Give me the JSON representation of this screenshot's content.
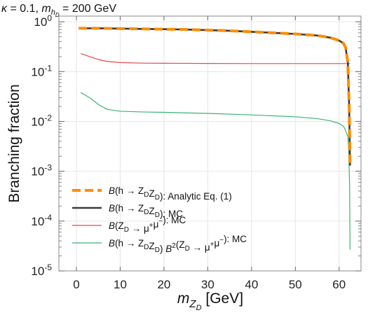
{
  "chart_data": {
    "type": "line",
    "title_parts": {
      "kappa_symbol": "κ",
      "kappa_value": " = 0.1, ",
      "mass_symbol": "m",
      "mass_sub": "h",
      "mass_subsub": "D",
      "mass_value": " = 200 GeV"
    },
    "xlabel_parts": {
      "symbol": "m",
      "sub": "Z",
      "subsub": "D",
      "unit": " [GeV]"
    },
    "ylabel": "Branching fraction",
    "xlim": [
      -4,
      65
    ],
    "ylim": [
      1e-05,
      1.3
    ],
    "yscale": "log",
    "x_ticks": [
      0,
      10,
      20,
      30,
      40,
      50,
      60
    ],
    "y_ticks": [
      {
        "value": 1e-05,
        "base": "10",
        "exp": "-5"
      },
      {
        "value": 0.0001,
        "base": "10",
        "exp": "-4"
      },
      {
        "value": 0.001,
        "base": "10",
        "exp": "-3"
      },
      {
        "value": 0.01,
        "base": "10",
        "exp": "-2"
      },
      {
        "value": 0.1,
        "base": "10",
        "exp": "-1"
      },
      {
        "value": 1,
        "base": "10",
        "exp": "0"
      }
    ],
    "grid": true,
    "legend_position": "bottom-left",
    "series": [
      {
        "key": "analytic",
        "color": "#ff8c00",
        "style": "dashed",
        "legend_parts": [
          "B",
          "(h → Z",
          "D",
          "Z",
          "D",
          "): Analytic Eq. (1)"
        ],
        "x": [
          0.5,
          5,
          10,
          15,
          20,
          25,
          30,
          35,
          40,
          45,
          50,
          55,
          58,
          60,
          61,
          61.5,
          62,
          62.3,
          62.5
        ],
        "y": [
          0.74,
          0.74,
          0.73,
          0.72,
          0.71,
          0.7,
          0.68,
          0.66,
          0.63,
          0.6,
          0.57,
          0.53,
          0.48,
          0.42,
          0.37,
          0.3,
          0.15,
          0.02,
          0.0013
        ]
      },
      {
        "key": "mc-h",
        "color": "#3a3a3a",
        "style": "solid",
        "legend_parts": [
          "B",
          "(h → Z",
          "D",
          "Z",
          "D",
          "): MC"
        ],
        "x": [
          1,
          5,
          10,
          15,
          20,
          25,
          30,
          35,
          40,
          45,
          50,
          55,
          58,
          60,
          61,
          61.5,
          62,
          62.3,
          62.5
        ],
        "y": [
          0.74,
          0.74,
          0.73,
          0.72,
          0.71,
          0.7,
          0.68,
          0.66,
          0.63,
          0.6,
          0.57,
          0.53,
          0.48,
          0.42,
          0.37,
          0.3,
          0.15,
          0.02,
          0.0013
        ]
      },
      {
        "key": "mc-z",
        "color": "#e8474c",
        "style": "solid",
        "legend_parts": [
          "B",
          "(Z",
          "D",
          " → μ",
          "+",
          "μ",
          "−",
          "): MC"
        ],
        "x": [
          1,
          3,
          5,
          7,
          10,
          15,
          20,
          30,
          40,
          50,
          60,
          62.5
        ],
        "y": [
          0.23,
          0.2,
          0.175,
          0.16,
          0.152,
          0.148,
          0.147,
          0.146,
          0.145,
          0.145,
          0.145,
          0.145
        ]
      },
      {
        "key": "mc-product",
        "color": "#3bb273",
        "style": "solid",
        "legend_parts": [
          "B",
          "(h → Z",
          "D",
          "Z",
          "D",
          ") ",
          "B",
          "2",
          "(Z",
          "D",
          " → μ",
          "+",
          "μ",
          "−",
          "): MC"
        ],
        "x": [
          1,
          3,
          5,
          7,
          10,
          15,
          20,
          30,
          40,
          50,
          55,
          58,
          60,
          61,
          61.5,
          62,
          62.2,
          62.4,
          62.5
        ],
        "y": [
          0.038,
          0.03,
          0.022,
          0.0175,
          0.016,
          0.0155,
          0.0152,
          0.0145,
          0.0135,
          0.0124,
          0.0114,
          0.0103,
          0.0091,
          0.008,
          0.0065,
          0.005,
          0.0025,
          0.0005,
          2.7e-05
        ]
      }
    ]
  }
}
